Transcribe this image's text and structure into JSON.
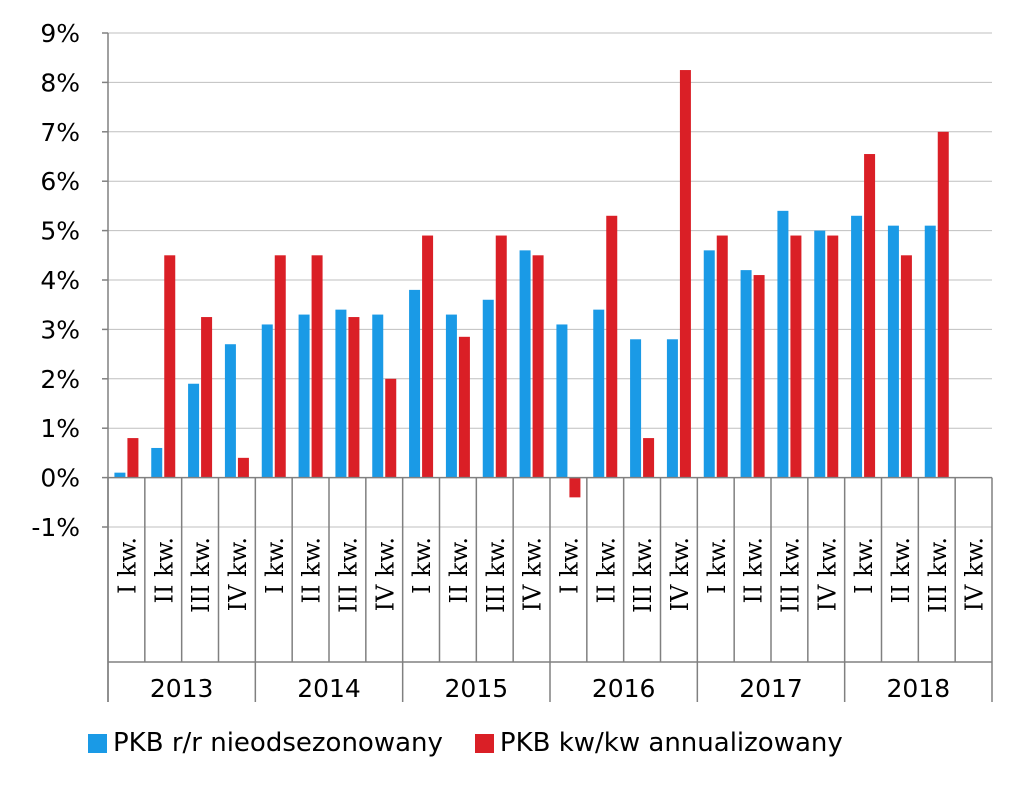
{
  "colors": {
    "series1": "#1A9AE6",
    "series2": "#DA1F26",
    "grid": "#BFBFBF",
    "axis": "#808080"
  },
  "chart_data": {
    "type": "bar",
    "title": "",
    "xlabel": "",
    "ylabel": "",
    "ylim": [
      -1,
      9
    ],
    "yticks": [
      -1,
      0,
      1,
      2,
      3,
      4,
      5,
      6,
      7,
      8,
      9
    ],
    "ytick_labels": [
      "-1%",
      "0%",
      "1%",
      "2%",
      "3%",
      "4%",
      "5%",
      "6%",
      "7%",
      "8%",
      "9%"
    ],
    "grid": true,
    "legend_position": "bottom",
    "quarter_labels": [
      "I kw.",
      "II kw.",
      "III kw.",
      "IV kw."
    ],
    "years": [
      "2013",
      "2014",
      "2015",
      "2016",
      "2017",
      "2018"
    ],
    "categories": [
      "2013 I kw.",
      "2013 II kw.",
      "2013 III kw.",
      "2013 IV kw.",
      "2014 I kw.",
      "2014 II kw.",
      "2014 III kw.",
      "2014 IV kw.",
      "2015 I kw.",
      "2015 II kw.",
      "2015 III kw.",
      "2015 IV kw.",
      "2016 I kw.",
      "2016 II kw.",
      "2016 III kw.",
      "2016 IV kw.",
      "2017 I kw.",
      "2017 II kw.",
      "2017 III kw.",
      "2017 IV kw.",
      "2018 I kw.",
      "2018 II kw.",
      "2018 III kw.",
      "2018 IV kw."
    ],
    "series": [
      {
        "name": "PKB r/r nieodsezonowany",
        "values": [
          0.1,
          0.6,
          1.9,
          2.7,
          3.1,
          3.3,
          3.4,
          3.3,
          3.8,
          3.3,
          3.6,
          4.6,
          3.1,
          3.4,
          2.8,
          2.8,
          4.6,
          4.2,
          5.4,
          5.0,
          5.3,
          5.1,
          5.1,
          null
        ]
      },
      {
        "name": "PKB kw/kw annualizowany",
        "values": [
          0.8,
          4.5,
          3.25,
          0.4,
          4.5,
          4.5,
          3.25,
          2.0,
          4.9,
          2.85,
          4.9,
          4.5,
          -0.4,
          5.3,
          0.8,
          8.25,
          4.9,
          4.1,
          4.9,
          4.9,
          6.55,
          4.5,
          7.0,
          null
        ]
      }
    ]
  }
}
